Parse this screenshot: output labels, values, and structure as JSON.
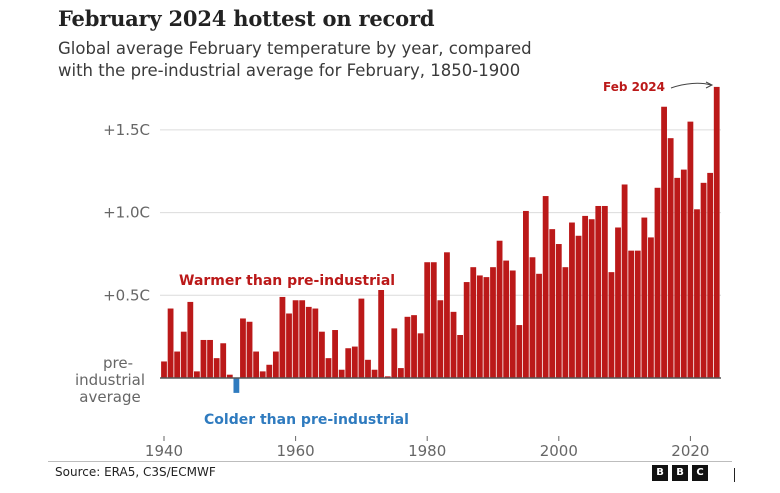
{
  "chart_data": {
    "type": "bar",
    "title": "February 2024 hottest on record",
    "subtitle_lines": [
      "Global average February temperature by year, compared",
      "with the pre-industrial average for February, 1850-1900"
    ],
    "xlabel": "",
    "ylabel": "",
    "units": "°C above pre-industrial average",
    "ylim": [
      -0.15,
      1.85
    ],
    "xlim": [
      1940,
      2024
    ],
    "grid": true,
    "y_ticks": [
      {
        "value": 1.5,
        "label": "+1.5C"
      },
      {
        "value": 1.0,
        "label": "+1.0C"
      },
      {
        "value": 0.5,
        "label": "+0.5C"
      }
    ],
    "baseline_label_lines": [
      "pre-",
      "industrial",
      "average"
    ],
    "x_ticks": [
      {
        "value": 1940,
        "label": "1940"
      },
      {
        "value": 1960,
        "label": "1960"
      },
      {
        "value": 1980,
        "label": "1980"
      },
      {
        "value": 2000,
        "label": "2000"
      },
      {
        "value": 2020,
        "label": "2020"
      }
    ],
    "annotations": {
      "warmer": "Warmer than pre-industrial",
      "colder": "Colder than pre-industrial",
      "highlight": "Feb 2024"
    },
    "colors": {
      "warm": "#bb1919",
      "cold": "#2f7bbf",
      "grid": "#dcdcdc",
      "baseline": "#555555"
    },
    "years": [
      1940,
      1941,
      1942,
      1943,
      1944,
      1945,
      1946,
      1947,
      1948,
      1949,
      1950,
      1951,
      1952,
      1953,
      1954,
      1955,
      1956,
      1957,
      1958,
      1959,
      1960,
      1961,
      1962,
      1963,
      1964,
      1965,
      1966,
      1967,
      1968,
      1969,
      1970,
      1971,
      1972,
      1973,
      1974,
      1975,
      1976,
      1977,
      1978,
      1979,
      1980,
      1981,
      1982,
      1983,
      1984,
      1985,
      1986,
      1987,
      1988,
      1989,
      1990,
      1991,
      1992,
      1993,
      1994,
      1995,
      1996,
      1997,
      1998,
      1999,
      2000,
      2001,
      2002,
      2003,
      2004,
      2005,
      2006,
      2007,
      2008,
      2009,
      2010,
      2011,
      2012,
      2013,
      2014,
      2015,
      2016,
      2017,
      2018,
      2019,
      2020,
      2021,
      2022,
      2023,
      2024
    ],
    "values": [
      0.1,
      0.42,
      0.16,
      0.28,
      0.46,
      0.04,
      0.23,
      0.23,
      0.12,
      0.21,
      0.02,
      -0.09,
      0.36,
      0.34,
      0.16,
      0.04,
      0.08,
      0.16,
      0.49,
      0.39,
      0.47,
      0.47,
      0.43,
      0.42,
      0.28,
      0.12,
      0.29,
      0.05,
      0.18,
      0.19,
      0.48,
      0.11,
      0.05,
      0.55,
      0.01,
      0.3,
      0.06,
      0.37,
      0.38,
      0.27,
      0.7,
      0.7,
      0.47,
      0.76,
      0.4,
      0.26,
      0.58,
      0.67,
      0.62,
      0.61,
      0.67,
      0.83,
      0.71,
      0.65,
      0.32,
      1.01,
      0.73,
      0.63,
      1.1,
      0.9,
      0.81,
      0.67,
      0.94,
      0.86,
      0.98,
      0.96,
      1.04,
      1.04,
      0.64,
      0.91,
      1.17,
      0.77,
      0.77,
      0.97,
      0.85,
      1.15,
      1.64,
      1.45,
      1.21,
      1.26,
      1.55,
      1.02,
      1.18,
      1.24,
      1.76
    ]
  },
  "footer": {
    "source": "Source: ERA5, C3S/ECMWF",
    "logo_letters": [
      "B",
      "B",
      "C"
    ]
  }
}
